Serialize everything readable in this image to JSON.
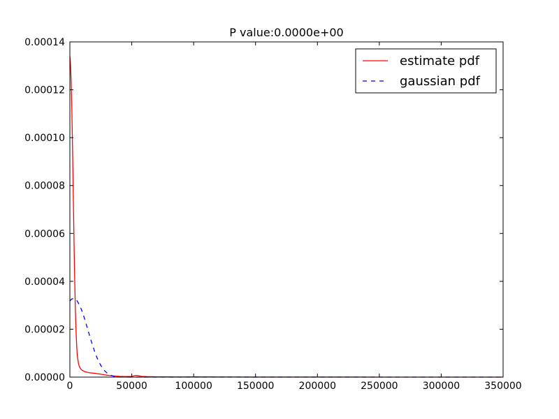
{
  "chart_data": {
    "type": "line",
    "title": "P value:0.0000e+00",
    "xlabel": "",
    "ylabel": "",
    "xlim": [
      0,
      350000
    ],
    "ylim": [
      0,
      0.00014
    ],
    "grid": false,
    "legend_position": "top-right",
    "x_ticks": [
      {
        "value": 0,
        "label": "0"
      },
      {
        "value": 50000,
        "label": "50000"
      },
      {
        "value": 100000,
        "label": "100000"
      },
      {
        "value": 150000,
        "label": "150000"
      },
      {
        "value": 200000,
        "label": "200000"
      },
      {
        "value": 250000,
        "label": "250000"
      },
      {
        "value": 300000,
        "label": "300000"
      },
      {
        "value": 350000,
        "label": "350000"
      }
    ],
    "y_ticks": [
      {
        "value": 0,
        "label": "0.00000"
      },
      {
        "value": 2e-05,
        "label": "0.00002"
      },
      {
        "value": 4e-05,
        "label": "0.00004"
      },
      {
        "value": 6e-05,
        "label": "0.00006"
      },
      {
        "value": 8e-05,
        "label": "0.00008"
      },
      {
        "value": 0.0001,
        "label": "0.00010"
      },
      {
        "value": 0.00012,
        "label": "0.00012"
      },
      {
        "value": 0.00014,
        "label": "0.00014"
      }
    ],
    "series": [
      {
        "name": "estimate pdf",
        "color": "#ff0000",
        "dash": "solid",
        "x": [
          0,
          500,
          1000,
          1500,
          2000,
          2500,
          3000,
          3500,
          4000,
          4500,
          5000,
          5500,
          6000,
          7000,
          8000,
          9000,
          10000,
          12000,
          14000,
          16000,
          20000,
          25000,
          30000,
          35000,
          40000,
          45000,
          50000,
          53000,
          55000,
          58000,
          62000,
          70000,
          80000,
          90000,
          100000,
          150000,
          200000,
          250000,
          300000,
          350000
        ],
        "y": [
          0.000134,
          0.000131,
          0.000124,
          0.000114,
          0.0001,
          8.5e-05,
          6.8e-05,
          5.2e-05,
          3.8e-05,
          2.7e-05,
          1.9e-05,
          1.3e-05,
          9e-06,
          5.5e-06,
          4e-06,
          3.3e-06,
          2.8e-06,
          2.3e-06,
          2e-06,
          1.8e-06,
          1.6e-06,
          1.2e-06,
          8e-07,
          5e-07,
          3e-07,
          2e-07,
          3e-07,
          7e-07,
          6e-07,
          3e-07,
          2e-07,
          1e-07,
          1e-07,
          5e-08,
          1e-07,
          2e-08,
          2e-08,
          1e-08,
          1e-08,
          1e-08
        ]
      },
      {
        "name": "gaussian pdf",
        "color": "#0000ff",
        "dash": "dashed",
        "x": [
          0,
          1000,
          2000,
          3000,
          4000,
          5000,
          6000,
          8000,
          10000,
          12000,
          14000,
          16000,
          18000,
          20000,
          22000,
          24000,
          26000,
          28000,
          30000,
          32000,
          34000,
          36000,
          38000,
          40000,
          45000,
          50000,
          60000,
          80000,
          100000,
          150000,
          200000,
          250000,
          300000,
          350000
        ],
        "y": [
          3.18e-05,
          3.24e-05,
          3.27e-05,
          3.28e-05,
          3.27e-05,
          3.23e-05,
          3.17e-05,
          2.99e-05,
          2.73e-05,
          2.42e-05,
          2.07e-05,
          1.72e-05,
          1.38e-05,
          1.07e-05,
          8e-06,
          5.8e-06,
          4e-06,
          2.7e-06,
          1.7e-06,
          1e-06,
          6e-07,
          3e-07,
          2e-07,
          1e-07,
          3e-08,
          1e-08,
          0,
          0,
          0,
          0,
          0,
          0,
          0,
          0
        ]
      }
    ]
  }
}
